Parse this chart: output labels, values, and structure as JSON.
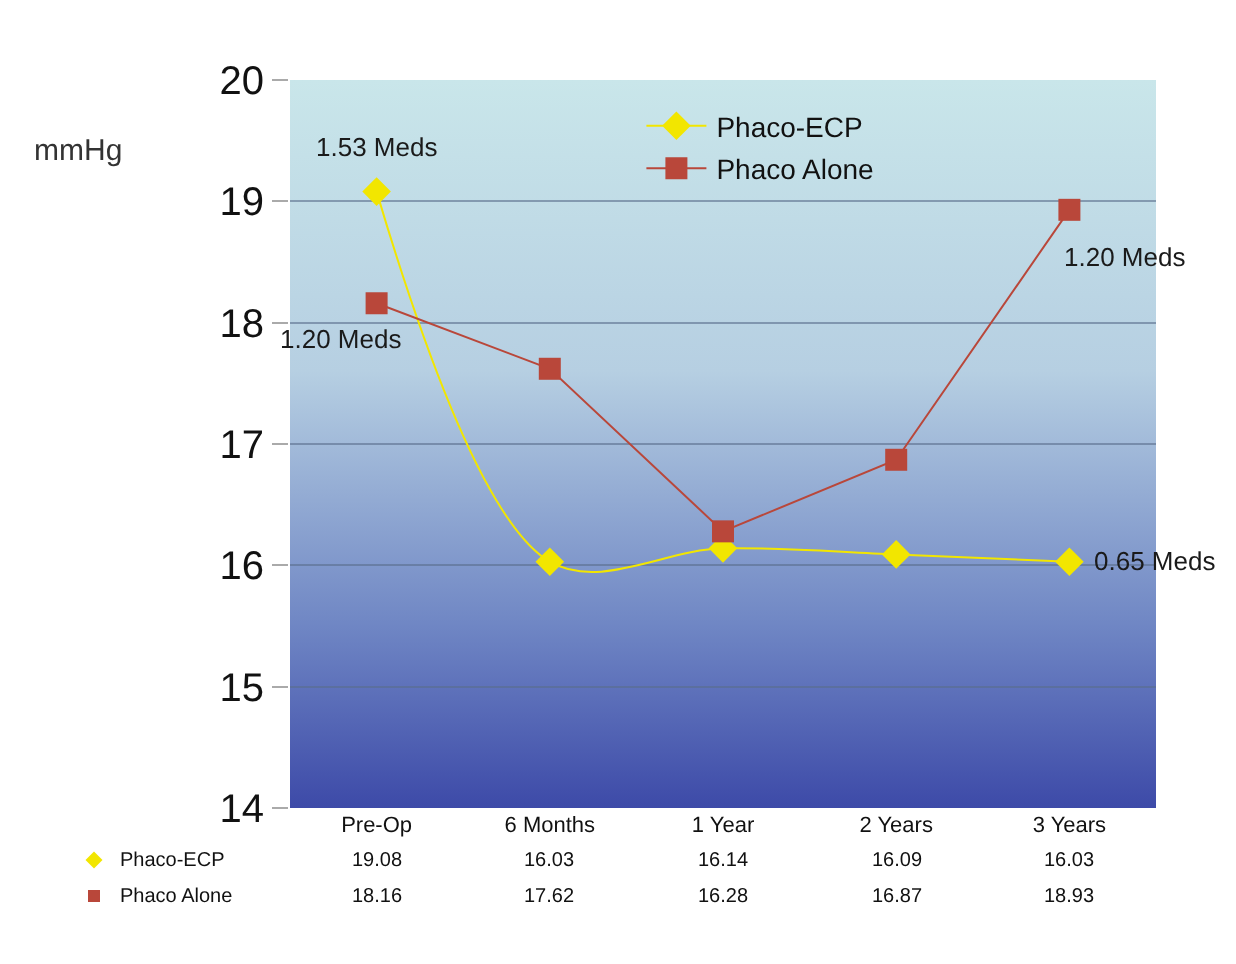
{
  "chart_data": {
    "type": "line",
    "ylabel": "mmHg",
    "categories": [
      "Pre-Op",
      "6 Months",
      "1 Year",
      "2 Years",
      "3 Years"
    ],
    "series": [
      {
        "name": "Phaco-ECP",
        "color": "#f2e600",
        "marker": "diamond",
        "values": [
          19.08,
          16.03,
          16.14,
          16.09,
          16.03
        ]
      },
      {
        "name": "Phaco Alone",
        "color": "#b9473a",
        "marker": "square",
        "values": [
          18.16,
          17.62,
          16.28,
          16.87,
          18.93
        ]
      }
    ],
    "ylim": [
      14,
      20
    ],
    "yticks": [
      14,
      15,
      16,
      17,
      18,
      19,
      20
    ],
    "grid": "y",
    "legend": "top",
    "data_labels": true,
    "annotations": [
      {
        "text": "1.53 Meds",
        "x": "Pre-Op",
        "y": 19.08
      },
      {
        "text": "1.20 Meds",
        "x": "Pre-Op",
        "y": 18.16
      },
      {
        "text": "1.20 Meds",
        "x": "3 Years",
        "y": 18.93
      },
      {
        "text": "0.65 Meds",
        "x": "3 Years",
        "y": 16.03
      }
    ]
  }
}
